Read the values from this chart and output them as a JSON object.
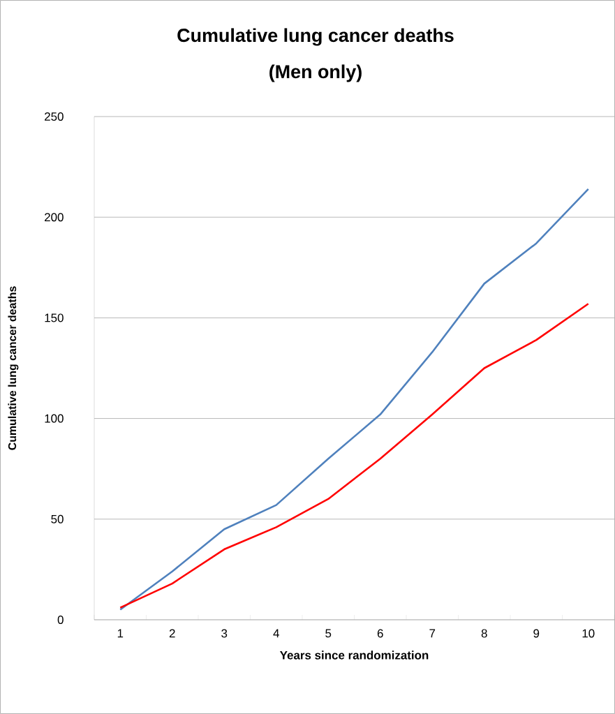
{
  "chart_data": {
    "type": "line",
    "title": "Cumulative lung cancer deaths",
    "subtitle": "(Men only)",
    "xlabel": "Years since randomization",
    "ylabel": "Cumulative lung cancer deaths",
    "categories": [
      "1",
      "2",
      "3",
      "4",
      "5",
      "6",
      "7",
      "8",
      "9",
      "10"
    ],
    "series": [
      {
        "color": "#4f81bd",
        "values": [
          5,
          24,
          45,
          57,
          80,
          102,
          133,
          167,
          187,
          214
        ]
      },
      {
        "color": "#ff0000",
        "values": [
          6,
          18,
          35,
          46,
          60,
          80,
          102,
          125,
          139,
          157
        ]
      }
    ],
    "ylim": [
      0,
      250
    ],
    "yticks": [
      0,
      50,
      100,
      150,
      200,
      250
    ],
    "grid": "y",
    "marker": "none",
    "line_style": "solid"
  }
}
